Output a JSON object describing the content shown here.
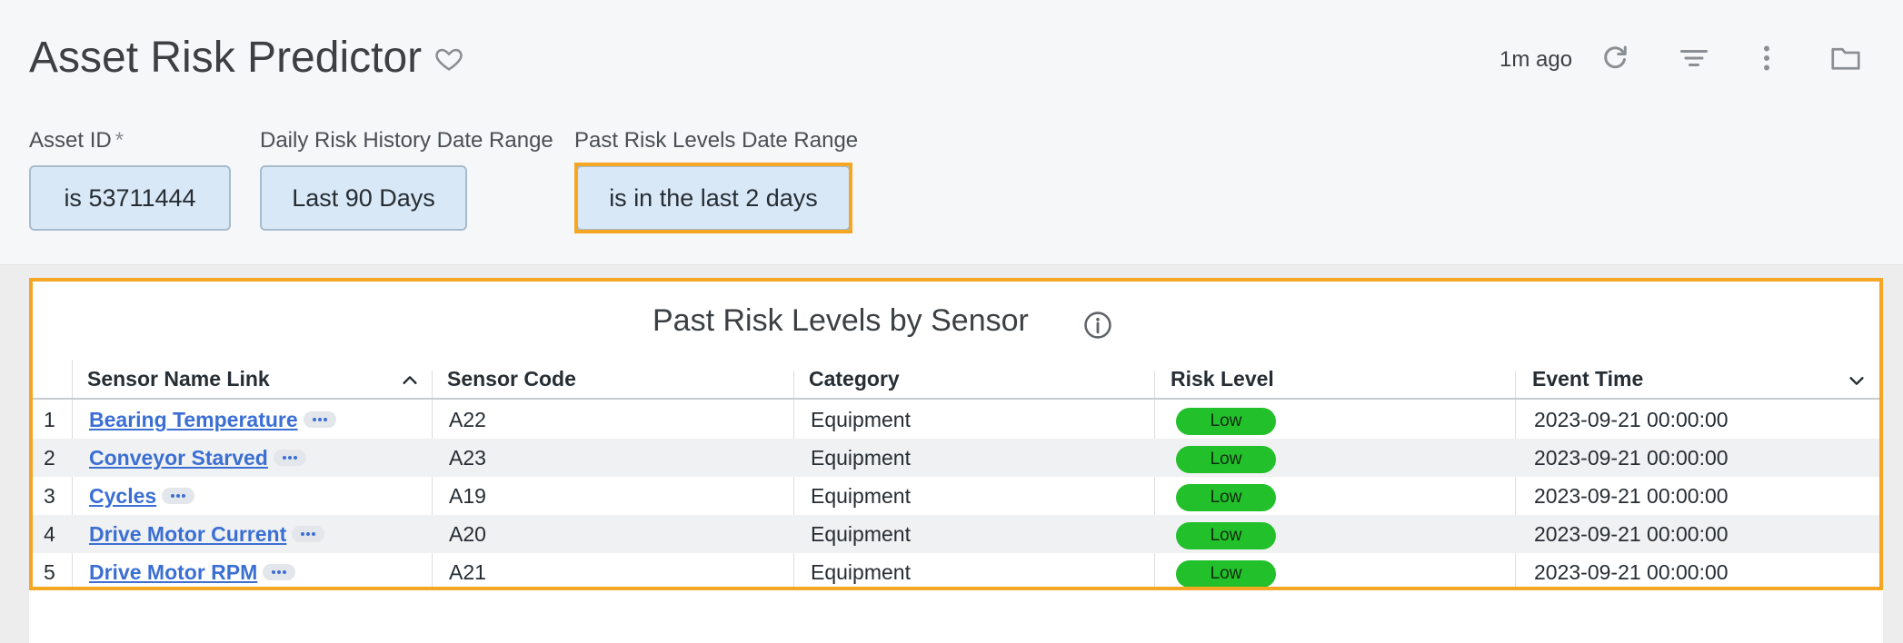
{
  "header": {
    "title": "Asset Risk Predictor",
    "updated": "1m ago"
  },
  "filters": [
    {
      "label": "Asset ID",
      "required_mark": "*",
      "value": "is 53711444"
    },
    {
      "label": "Daily Risk History Date Range",
      "value": "Last 90 Days"
    },
    {
      "label": "Past Risk Levels Date Range",
      "value": "is in the last 2 days"
    }
  ],
  "colors": {
    "highlight": "#f5a623",
    "filter_bg": "#d9e8f7",
    "risk_low": "#22c02a",
    "link": "#3b6fd4"
  },
  "table": {
    "title": "Past Risk Levels by Sensor",
    "columns": [
      "Sensor Name Link",
      "Sensor Code",
      "Category",
      "Risk Level",
      "Event Time"
    ],
    "rows": [
      {
        "n": "1",
        "name": "Bearing Temperature",
        "code": "A22",
        "category": "Equipment",
        "risk": "Low",
        "time": "2023-09-21 00:00:00"
      },
      {
        "n": "2",
        "name": "Conveyor Starved",
        "code": "A23",
        "category": "Equipment",
        "risk": "Low",
        "time": "2023-09-21 00:00:00"
      },
      {
        "n": "3",
        "name": "Cycles",
        "code": "A19",
        "category": "Equipment",
        "risk": "Low",
        "time": "2023-09-21 00:00:00"
      },
      {
        "n": "4",
        "name": "Drive Motor Current",
        "code": "A20",
        "category": "Equipment",
        "risk": "Low",
        "time": "2023-09-21 00:00:00"
      },
      {
        "n": "5",
        "name": "Drive Motor RPM",
        "code": "A21",
        "category": "Equipment",
        "risk": "Low",
        "time": "2023-09-21 00:00:00"
      }
    ]
  }
}
